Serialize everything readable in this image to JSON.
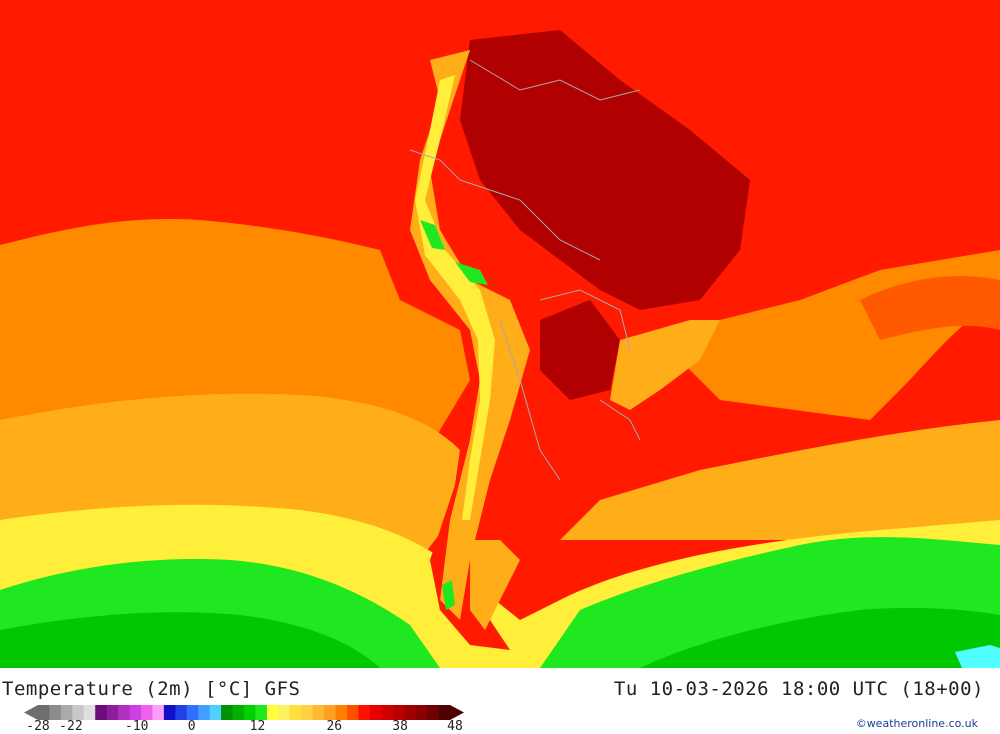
{
  "header": {
    "title_left": "Temperature (2m) [°C] GFS",
    "title_right": "Tu 10-03-2026 18:00 UTC (18+00)"
  },
  "legend": {
    "tick_labels": [
      "-28",
      "-22",
      "-10",
      "0",
      "12",
      "26",
      "38",
      "48"
    ],
    "colors": [
      "#6e6e6e",
      "#8c8c8c",
      "#aaaaaa",
      "#c8c8c8",
      "#e0e0e0",
      "#6a0f7a",
      "#8c1e9c",
      "#b02ec0",
      "#d040e0",
      "#f060f0",
      "#f8a0f8",
      "#1010c8",
      "#2040e8",
      "#3070ff",
      "#40a0ff",
      "#50d0ff",
      "#009000",
      "#00b000",
      "#00d000",
      "#20e820",
      "#ffff40",
      "#fff060",
      "#ffe040",
      "#ffd040",
      "#ffb830",
      "#ffa020",
      "#ff8000",
      "#ff5000",
      "#ff1000",
      "#e80000",
      "#d00000",
      "#b80000",
      "#a00000",
      "#880000",
      "#700000",
      "#500000"
    ]
  },
  "map": {
    "region": "South America",
    "palette": {
      "dark_red": "#b00000",
      "red": "#ff1a00",
      "red_orange": "#ff5a00",
      "orange": "#ff8a00",
      "light_orange": "#ffae1a",
      "yellow_orange": "#ffc82a",
      "yellow": "#ffee3a",
      "light_green": "#20e820",
      "green": "#00c800",
      "dark_green": "#009000",
      "cyan": "#50ffff",
      "border": "#aaaaaa"
    }
  },
  "credit": "©weatheronline.co.uk"
}
